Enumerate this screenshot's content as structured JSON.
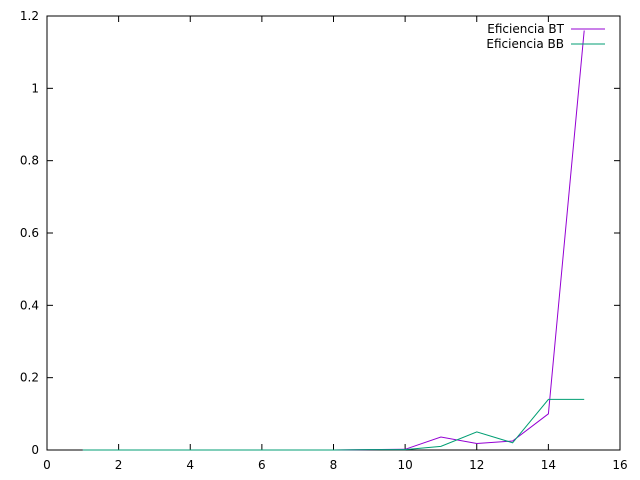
{
  "chart_data": {
    "type": "line",
    "title": "",
    "xlabel": "",
    "ylabel": "",
    "xlim": [
      0,
      16
    ],
    "ylim": [
      0,
      1.2
    ],
    "x_ticks": [
      "0",
      "2",
      "4",
      "6",
      "8",
      "10",
      "12",
      "14",
      "16"
    ],
    "y_ticks": [
      "0",
      "0.2",
      "0.4",
      "0.6",
      "0.8",
      "1",
      "1.2"
    ],
    "grid": false,
    "legend_position": "top-right",
    "series": [
      {
        "name": "Eficiencia BT",
        "color": "#9400d3",
        "x": [
          1,
          2,
          3,
          4,
          5,
          6,
          7,
          8,
          9,
          10,
          11,
          12,
          13,
          14,
          15
        ],
        "y": [
          0,
          0,
          0,
          0,
          0,
          0,
          0,
          0,
          0.001,
          0.002,
          0.036,
          0.018,
          0.025,
          0.1,
          1.16
        ]
      },
      {
        "name": "Eficiencia BB",
        "color": "#009e73",
        "x": [
          1,
          2,
          3,
          4,
          5,
          6,
          7,
          8,
          9,
          10,
          11,
          12,
          13,
          14,
          15
        ],
        "y": [
          0,
          0,
          0,
          0,
          0,
          0,
          0,
          0,
          0.001,
          0.001,
          0.01,
          0.05,
          0.02,
          0.14,
          0.14
        ]
      }
    ]
  }
}
